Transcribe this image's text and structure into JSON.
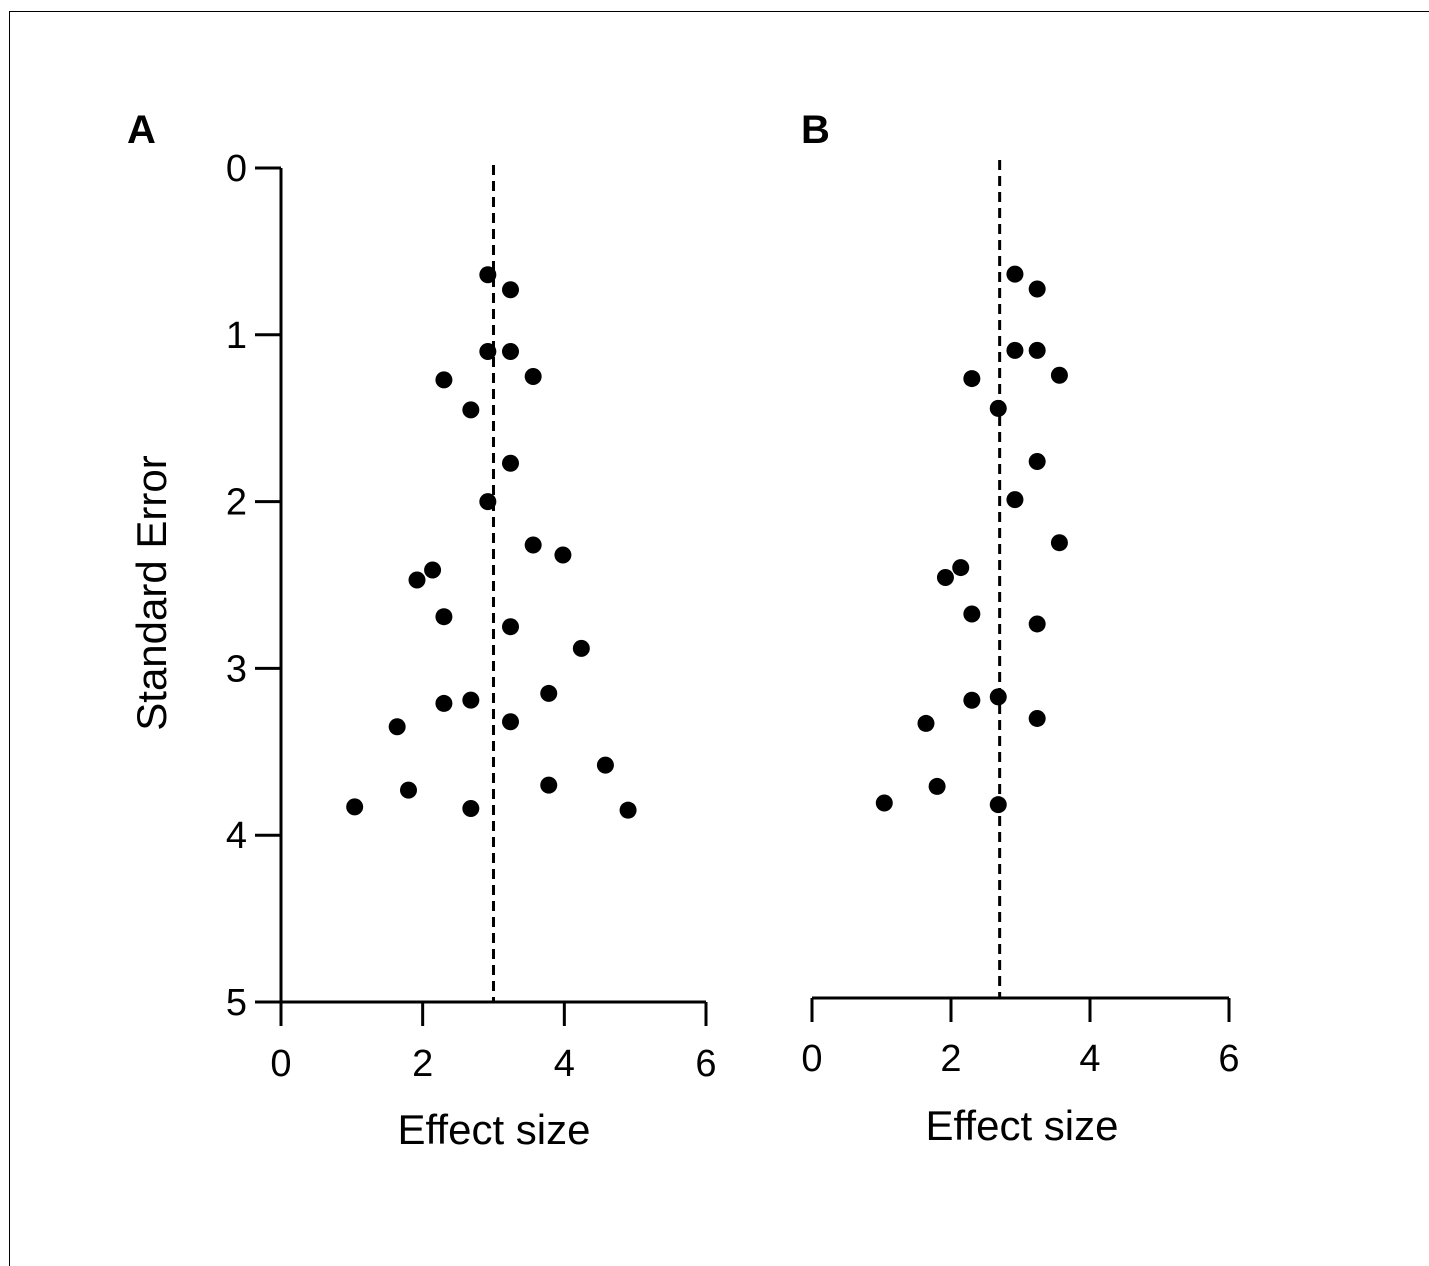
{
  "chart_data": [
    {
      "type": "scatter",
      "panel": "A",
      "xlabel": "Effect size",
      "ylabel": "Standard Error",
      "xlim": [
        0,
        6
      ],
      "ylim": [
        0,
        5
      ],
      "y_inverted": true,
      "xticks": [
        "0",
        "2",
        "4",
        "6"
      ],
      "yticks": [
        "0",
        "1",
        "2",
        "3",
        "4",
        "5"
      ],
      "reference_line_x": 3.0,
      "points": [
        {
          "x": 2.92,
          "y": 0.64
        },
        {
          "x": 3.24,
          "y": 0.73
        },
        {
          "x": 2.92,
          "y": 1.1
        },
        {
          "x": 3.24,
          "y": 1.1
        },
        {
          "x": 2.3,
          "y": 1.27
        },
        {
          "x": 3.56,
          "y": 1.25
        },
        {
          "x": 2.68,
          "y": 1.45
        },
        {
          "x": 3.24,
          "y": 1.77
        },
        {
          "x": 2.92,
          "y": 2.0
        },
        {
          "x": 3.56,
          "y": 2.26
        },
        {
          "x": 3.98,
          "y": 2.32
        },
        {
          "x": 2.14,
          "y": 2.41
        },
        {
          "x": 1.92,
          "y": 2.47
        },
        {
          "x": 2.3,
          "y": 2.69
        },
        {
          "x": 3.24,
          "y": 2.75
        },
        {
          "x": 4.24,
          "y": 2.88
        },
        {
          "x": 3.78,
          "y": 3.15
        },
        {
          "x": 2.68,
          "y": 3.19
        },
        {
          "x": 2.3,
          "y": 3.21
        },
        {
          "x": 3.24,
          "y": 3.32
        },
        {
          "x": 1.64,
          "y": 3.35
        },
        {
          "x": 4.58,
          "y": 3.58
        },
        {
          "x": 3.78,
          "y": 3.7
        },
        {
          "x": 1.8,
          "y": 3.73
        },
        {
          "x": 1.04,
          "y": 3.83
        },
        {
          "x": 2.68,
          "y": 3.84
        },
        {
          "x": 4.9,
          "y": 3.85
        }
      ]
    },
    {
      "type": "scatter",
      "panel": "B",
      "xlabel": "Effect size",
      "ylabel": "",
      "xlim": [
        0,
        6
      ],
      "ylim": [
        0,
        5
      ],
      "y_inverted": true,
      "xticks": [
        "0",
        "2",
        "4",
        "6"
      ],
      "reference_line_x": 2.7,
      "points": [
        {
          "x": 2.92,
          "y": 0.64
        },
        {
          "x": 3.24,
          "y": 0.73
        },
        {
          "x": 2.92,
          "y": 1.1
        },
        {
          "x": 3.24,
          "y": 1.1
        },
        {
          "x": 2.3,
          "y": 1.27
        },
        {
          "x": 3.56,
          "y": 1.25
        },
        {
          "x": 2.68,
          "y": 1.45
        },
        {
          "x": 3.24,
          "y": 1.77
        },
        {
          "x": 2.92,
          "y": 2.0
        },
        {
          "x": 3.56,
          "y": 2.26
        },
        {
          "x": 2.14,
          "y": 2.41
        },
        {
          "x": 1.92,
          "y": 2.47
        },
        {
          "x": 2.3,
          "y": 2.69
        },
        {
          "x": 3.24,
          "y": 2.75
        },
        {
          "x": 2.68,
          "y": 3.19
        },
        {
          "x": 2.3,
          "y": 3.21
        },
        {
          "x": 3.24,
          "y": 3.32
        },
        {
          "x": 1.64,
          "y": 3.35
        },
        {
          "x": 1.8,
          "y": 3.73
        },
        {
          "x": 1.04,
          "y": 3.83
        },
        {
          "x": 2.68,
          "y": 3.84
        }
      ]
    }
  ]
}
